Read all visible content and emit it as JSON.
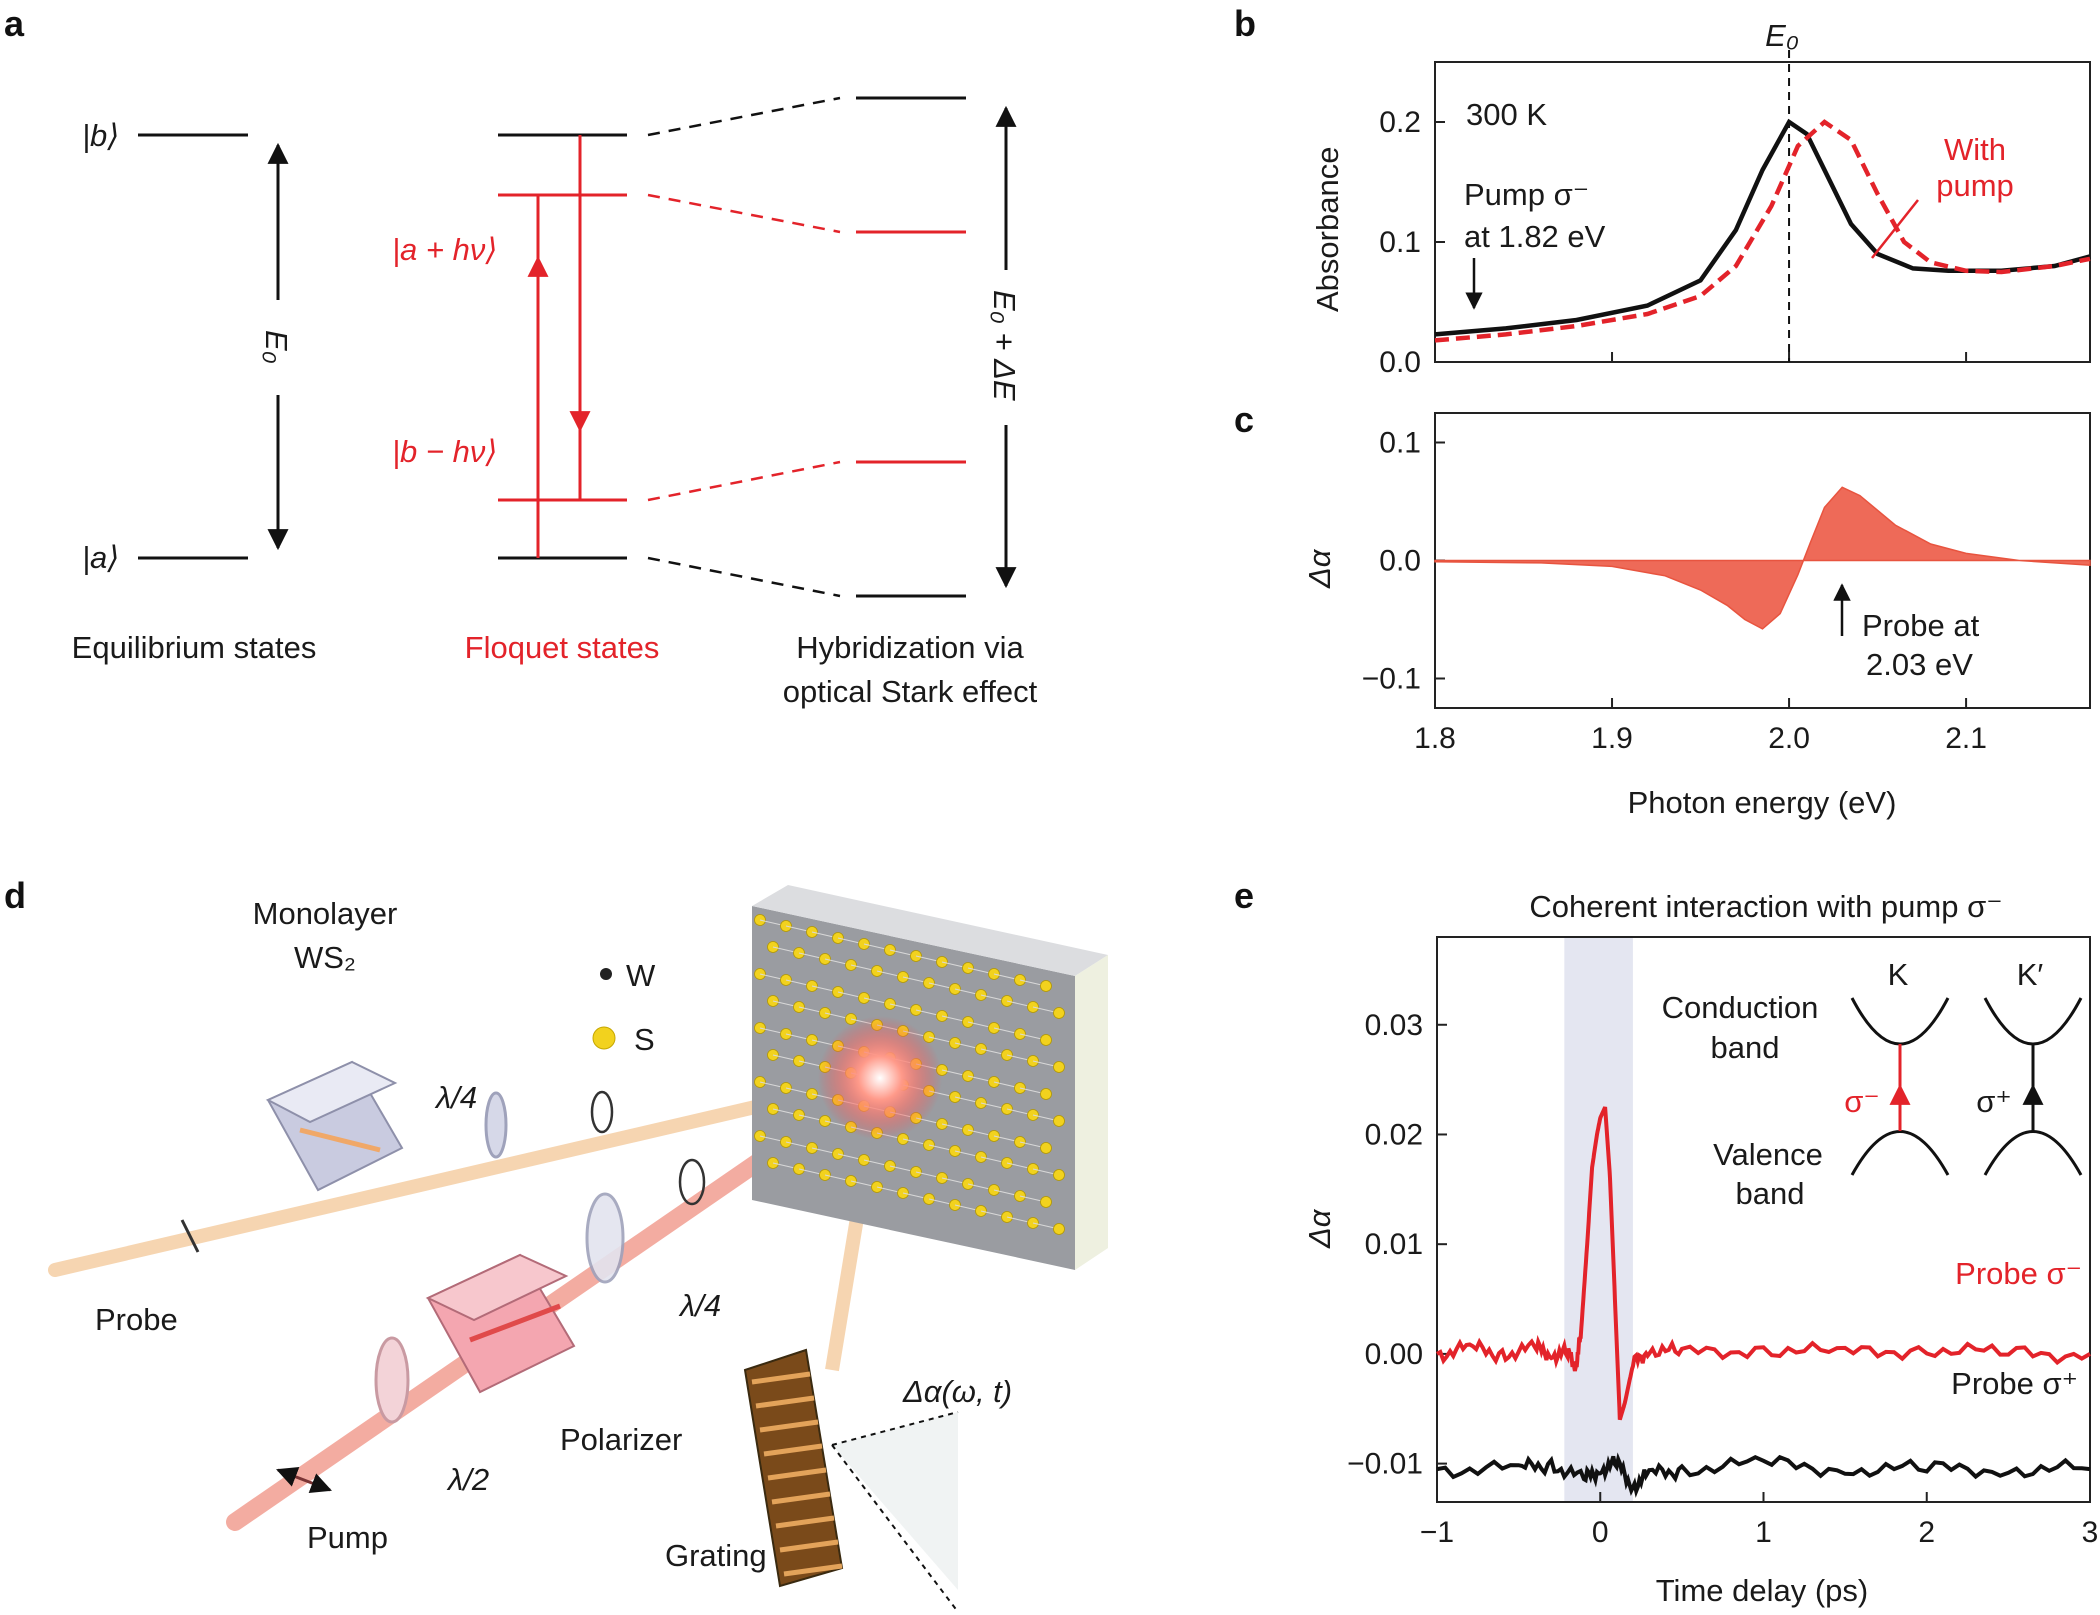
{
  "colors": {
    "red": "#e3232a",
    "black": "#111111",
    "fill_red": "#ee6a58",
    "shade": "#e4e6f1"
  },
  "panel_a": {
    "letter": "a",
    "ket_b": "|b⟩",
    "ket_a": "|a⟩",
    "e0_label": "E₀",
    "floquet_a": "|a + hν⟩",
    "floquet_b": "|b − hν⟩",
    "e0_de_label": "E₀ + ΔE",
    "caption_eq": "Equilibrium states",
    "caption_floquet": "Floquet states",
    "caption_hyb_1": "Hybridization via",
    "caption_hyb_2": "optical Stark effect"
  },
  "panel_b": {
    "letter": "b",
    "e0_marker": "E₀",
    "temp": "300 K",
    "pump_1": "Pump σ⁻",
    "pump_2": "at 1.82 eV",
    "with_1": "With",
    "with_2": "pump",
    "ylabel": "Absorbance"
  },
  "panel_c": {
    "letter": "c",
    "ylabel": "Δα",
    "probe_1": "Probe at",
    "probe_2": "2.03 eV",
    "xlabel": "Photon energy (eV)"
  },
  "panel_d": {
    "letter": "d",
    "mono_1": "Monolayer",
    "mono_2": "WS₂",
    "w": "W",
    "s": "S",
    "lambda4_top": "λ/4",
    "lambda4_mid": "λ/4",
    "lambda2": "λ/2",
    "probe": "Probe",
    "pump": "Pump",
    "polarizer": "Polarizer",
    "grating": "Grating",
    "delta_alpha": "Δα(ω, t)"
  },
  "panel_e": {
    "letter": "e",
    "title": "Coherent interaction with pump σ⁻",
    "ylabel": "Δα",
    "xlabel": "Time delay (ps)",
    "cond_1": "Conduction",
    "cond_2": "band",
    "val_1": "Valence",
    "val_2": "band",
    "k": "K",
    "kp": "K′",
    "sigma_minus": "σ⁻",
    "sigma_plus": "σ⁺",
    "probe_minus": "Probe σ⁻",
    "probe_plus": "Probe σ⁺"
  },
  "chart_data": [
    {
      "panel": "b",
      "type": "line",
      "xlabel": "",
      "ylabel": "Absorbance",
      "xlim": [
        1.8,
        2.17
      ],
      "ylim": [
        0.0,
        0.25
      ],
      "xticks": [
        1.8,
        1.9,
        2.0,
        2.1
      ],
      "yticks": [
        0.0,
        0.1,
        0.2
      ],
      "ytick_labels": [
        "0.0",
        "0.1",
        "0.2"
      ],
      "vline": 2.0,
      "series": [
        {
          "style": "solid black",
          "x": [
            1.8,
            1.84,
            1.88,
            1.92,
            1.95,
            1.97,
            1.985,
            2.0,
            2.01,
            2.02,
            2.035,
            2.05,
            2.07,
            2.09,
            2.12,
            2.15,
            2.17
          ],
          "y": [
            0.023,
            0.028,
            0.035,
            0.047,
            0.068,
            0.11,
            0.16,
            0.2,
            0.19,
            0.16,
            0.115,
            0.09,
            0.078,
            0.076,
            0.076,
            0.08,
            0.088
          ]
        },
        {
          "name": "With pump",
          "style": "dashed red",
          "x": [
            1.8,
            1.84,
            1.88,
            1.92,
            1.95,
            1.97,
            1.99,
            2.005,
            2.02,
            2.035,
            2.05,
            2.065,
            2.08,
            2.1,
            2.12,
            2.15,
            2.17
          ],
          "y": [
            0.018,
            0.023,
            0.03,
            0.04,
            0.055,
            0.08,
            0.13,
            0.18,
            0.2,
            0.185,
            0.14,
            0.1,
            0.083,
            0.076,
            0.075,
            0.08,
            0.086
          ]
        }
      ]
    },
    {
      "panel": "c",
      "type": "area",
      "xlabel": "Photon energy (eV)",
      "ylabel": "Δα",
      "xlim": [
        1.8,
        2.17
      ],
      "ylim": [
        -0.125,
        0.125
      ],
      "xticks": [
        1.8,
        1.9,
        2.0,
        2.1
      ],
      "xtick_labels": [
        "1.8",
        "1.9",
        "2.0",
        "2.1"
      ],
      "yticks": [
        -0.1,
        0.0,
        0.1
      ],
      "ytick_labels": [
        "−0.1",
        "0.0",
        "0.1"
      ],
      "series": [
        {
          "x": [
            1.8,
            1.86,
            1.9,
            1.93,
            1.95,
            1.965,
            1.975,
            1.985,
            1.995,
            2.005,
            2.012,
            2.02,
            2.03,
            2.04,
            2.06,
            2.08,
            2.1,
            2.13,
            2.17
          ],
          "y": [
            -0.001,
            -0.002,
            -0.005,
            -0.013,
            -0.025,
            -0.038,
            -0.05,
            -0.058,
            -0.045,
            -0.012,
            0.015,
            0.045,
            0.062,
            0.055,
            0.03,
            0.014,
            0.006,
            0.0,
            -0.004
          ]
        }
      ]
    },
    {
      "panel": "e",
      "type": "line",
      "title": "Coherent interaction with pump σ⁻",
      "xlabel": "Time delay (ps)",
      "ylabel": "Δα",
      "xlim": [
        -1,
        3
      ],
      "ylim": [
        -0.0135,
        0.038
      ],
      "xticks": [
        -1,
        0,
        1,
        2,
        3
      ],
      "xtick_labels": [
        "−1",
        "0",
        "1",
        "2",
        "3"
      ],
      "yticks": [
        -0.01,
        0.0,
        0.01,
        0.02,
        0.03
      ],
      "ytick_labels": [
        "−0.01",
        "0.00",
        "0.01",
        "0.02",
        "0.03"
      ],
      "shaded_x": [
        -0.22,
        0.2
      ],
      "series": [
        {
          "name": "Probe σ⁻",
          "style": "solid red",
          "x": [
            -1,
            -0.8,
            -0.6,
            -0.4,
            -0.3,
            -0.2,
            -0.15,
            -0.12,
            -0.08,
            -0.05,
            -0.02,
            0.0,
            0.03,
            0.06,
            0.09,
            0.12,
            0.15,
            0.2,
            0.3,
            0.5,
            1.0,
            1.5,
            2.0,
            2.5,
            3.0
          ],
          "y": [
            0.0,
            0.0005,
            0.0,
            0.0005,
            0.0,
            0.0,
            -0.001,
            0.0015,
            0.01,
            0.017,
            0.02,
            0.0215,
            0.0225,
            0.016,
            0.005,
            -0.006,
            -0.0045,
            -0.001,
            0.0005,
            0.0,
            0.0005,
            0.0,
            0.0005,
            0.0,
            0.0
          ]
        },
        {
          "name": "Probe σ⁺",
          "style": "solid black",
          "x": [
            -1,
            -0.5,
            -0.3,
            -0.1,
            0.0,
            0.1,
            0.2,
            0.3,
            0.5,
            1.0,
            1.5,
            2.0,
            2.5,
            3.0
          ],
          "y": [
            -0.0105,
            -0.0105,
            -0.01,
            -0.0115,
            -0.0105,
            -0.01,
            -0.012,
            -0.011,
            -0.0105,
            -0.01,
            -0.0105,
            -0.0105,
            -0.0105,
            -0.0105
          ]
        }
      ]
    }
  ]
}
